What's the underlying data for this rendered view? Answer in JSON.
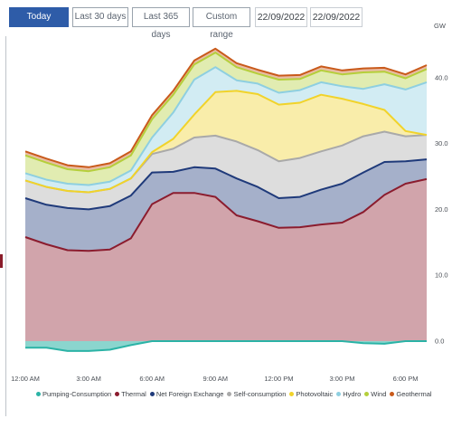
{
  "toolbar": {
    "today": "Today",
    "last30": "Last 30 days",
    "last365": "Last 365 days",
    "custom": "Custom range",
    "date_from": "22/09/2022",
    "date_to": "22/09/2022"
  },
  "colors": {
    "accent": "#2e5ca8",
    "pumping": "#2bb3a6",
    "thermal": "#8b1c2e",
    "net_foreign": "#1f3a7a",
    "self_consumption": "#a9a9a9",
    "photovoltaic": "#f1d32a",
    "hydro": "#8ecfe0",
    "wind": "#b5cf3b",
    "geothermal": "#c95a1b"
  },
  "chart_data": {
    "type": "area",
    "stacked": true,
    "unit": "GW",
    "x": [
      "12:00 AM",
      "1:00 AM",
      "2:00 AM",
      "3:00 AM",
      "4:00 AM",
      "5:00 AM",
      "6:00 AM",
      "7:00 AM",
      "8:00 AM",
      "9:00 AM",
      "10:00 AM",
      "11:00 AM",
      "12:00 PM",
      "1:00 PM",
      "2:00 PM",
      "3:00 PM",
      "4:00 PM",
      "5:00 PM",
      "6:00 PM",
      "7:00 PM"
    ],
    "x_ticks": [
      "12:00 AM",
      "3:00 AM",
      "6:00 AM",
      "9:00 AM",
      "12:00 PM",
      "3:00 PM",
      "6:00 PM"
    ],
    "y_ticks": [
      "0.0",
      "10.0",
      "20.0",
      "30.0",
      "40.0"
    ],
    "ylim": [
      -2.5,
      45
    ],
    "grid": false,
    "legend_position": "bottom",
    "series": [
      {
        "name": "Pumping-Consumption",
        "values": [
          -1.0,
          -1.0,
          -1.5,
          -1.5,
          -1.3,
          -0.6,
          0,
          0,
          0,
          0,
          0,
          0,
          0,
          0,
          0,
          0,
          -0.3,
          -0.4,
          0,
          0
        ]
      },
      {
        "name": "Thermal",
        "values": [
          15.8,
          14.7,
          13.8,
          13.7,
          13.9,
          15.6,
          20.8,
          22.5,
          22.5,
          21.9,
          19.1,
          18.2,
          17.2,
          17.3,
          17.7,
          18.0,
          19.6,
          22.2,
          23.9,
          24.6
        ]
      },
      {
        "name": "Net Foreign Exchange",
        "values": [
          5.9,
          6.0,
          6.4,
          6.3,
          6.6,
          6.5,
          4.8,
          3.2,
          3.9,
          4.3,
          5.6,
          5.2,
          4.5,
          4.6,
          5.3,
          5.9,
          6.0,
          5.0,
          3.4,
          3.0
        ]
      },
      {
        "name": "Self-consumption",
        "values": [
          2.7,
          2.7,
          2.6,
          2.6,
          2.6,
          2.6,
          2.8,
          3.5,
          4.5,
          5.0,
          5.6,
          5.6,
          5.6,
          5.9,
          5.8,
          5.8,
          5.5,
          4.6,
          3.8,
          3.7
        ]
      },
      {
        "name": "Photovoltaic",
        "values": [
          0,
          0,
          0,
          0,
          0,
          0,
          0.3,
          1.5,
          3.5,
          6.6,
          7.7,
          8.5,
          8.6,
          8.4,
          8.6,
          7.1,
          4.9,
          3.3,
          0.8,
          0
        ]
      },
      {
        "name": "Hydro",
        "values": [
          1.1,
          1.1,
          1.1,
          1.1,
          1.1,
          1.2,
          2.2,
          4.0,
          5.3,
          3.8,
          1.6,
          1.6,
          1.8,
          1.9,
          1.9,
          1.9,
          2.3,
          3.9,
          6.3,
          8.0
        ]
      },
      {
        "name": "Wind",
        "values": [
          2.7,
          2.6,
          2.2,
          2.1,
          2.2,
          2.3,
          2.8,
          2.7,
          2.3,
          2.2,
          2.0,
          1.5,
          2.0,
          1.7,
          1.8,
          1.8,
          2.5,
          1.9,
          1.7,
          2.0
        ]
      },
      {
        "name": "Geothermal",
        "values": [
          0.6,
          0.6,
          0.6,
          0.6,
          0.6,
          0.6,
          0.6,
          0.6,
          0.6,
          0.6,
          0.6,
          0.6,
          0.6,
          0.6,
          0.6,
          0.6,
          0.6,
          0.6,
          0.6,
          0.6
        ]
      }
    ]
  }
}
